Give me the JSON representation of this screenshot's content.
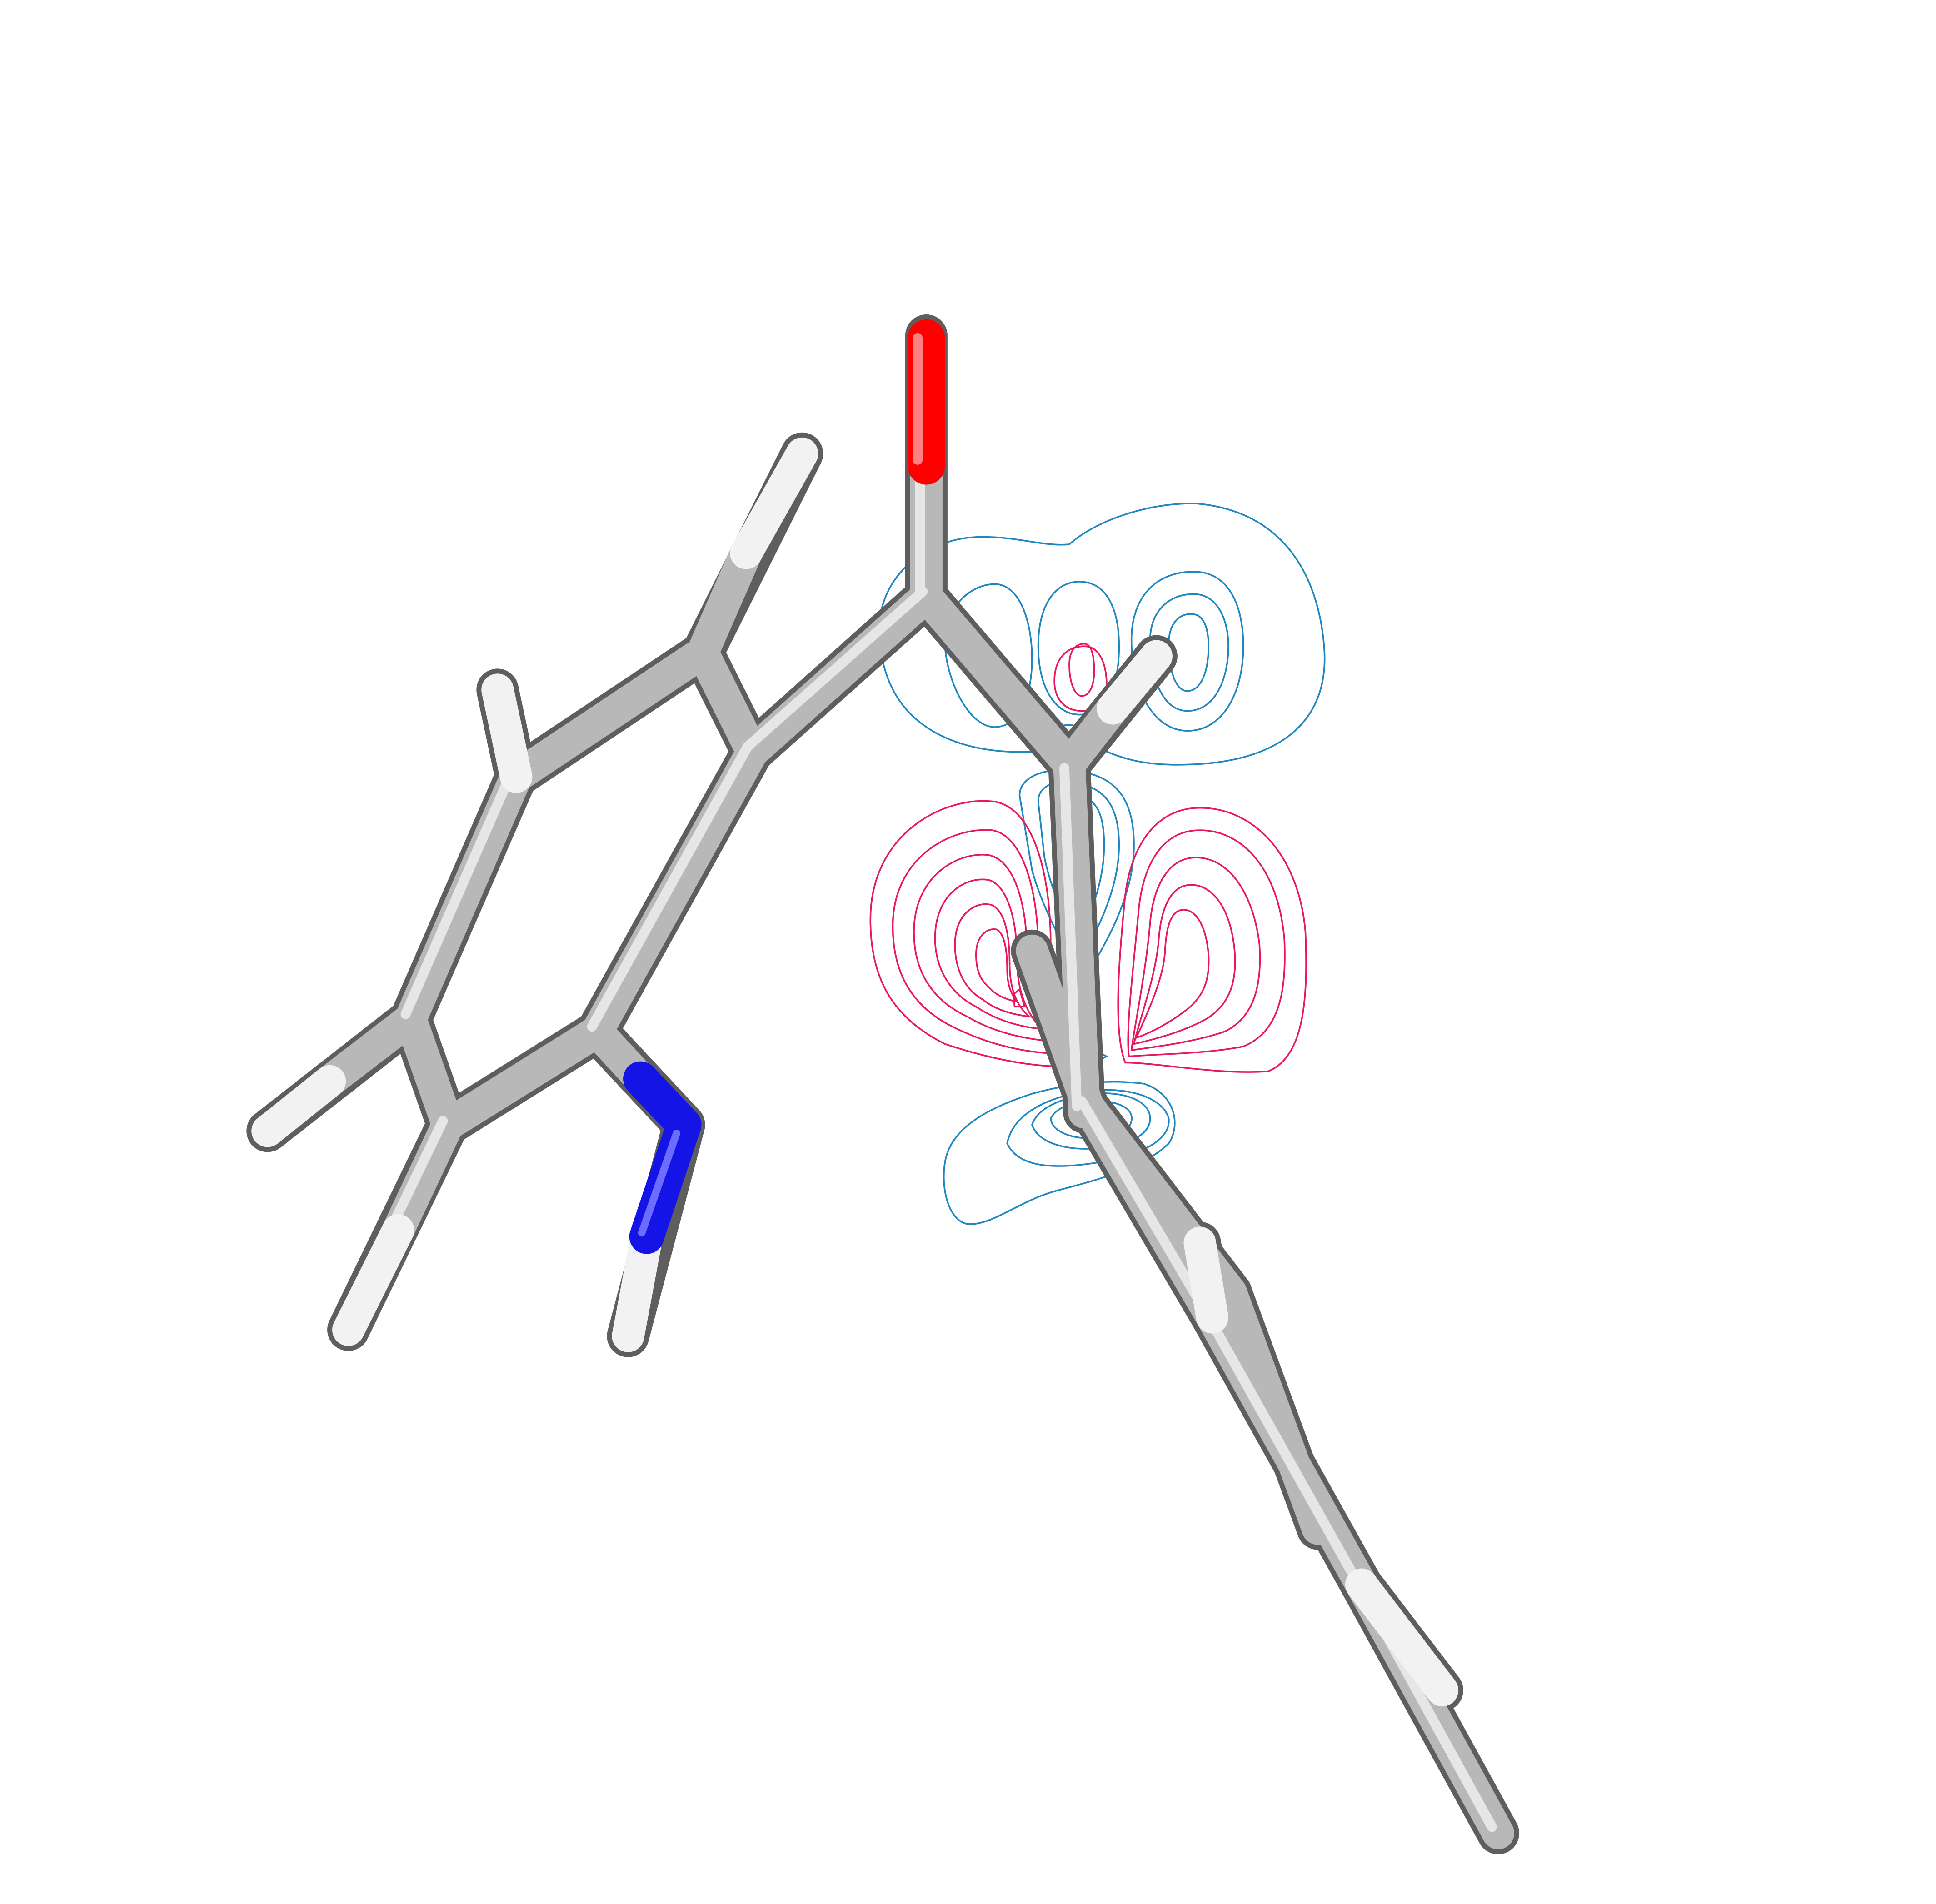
{
  "colors": {
    "background": "#ffffff",
    "carbon": "#a6a6a6",
    "hydrogen": "#f2f2f2",
    "nitrogen": "#1414e6",
    "oxygen": "#ff0000",
    "contour_positive": "#e8185a",
    "contour_negative": "#1f86bf"
  },
  "icons": {
    "scene": "molecule-stick-model-with-orbital-contours"
  }
}
